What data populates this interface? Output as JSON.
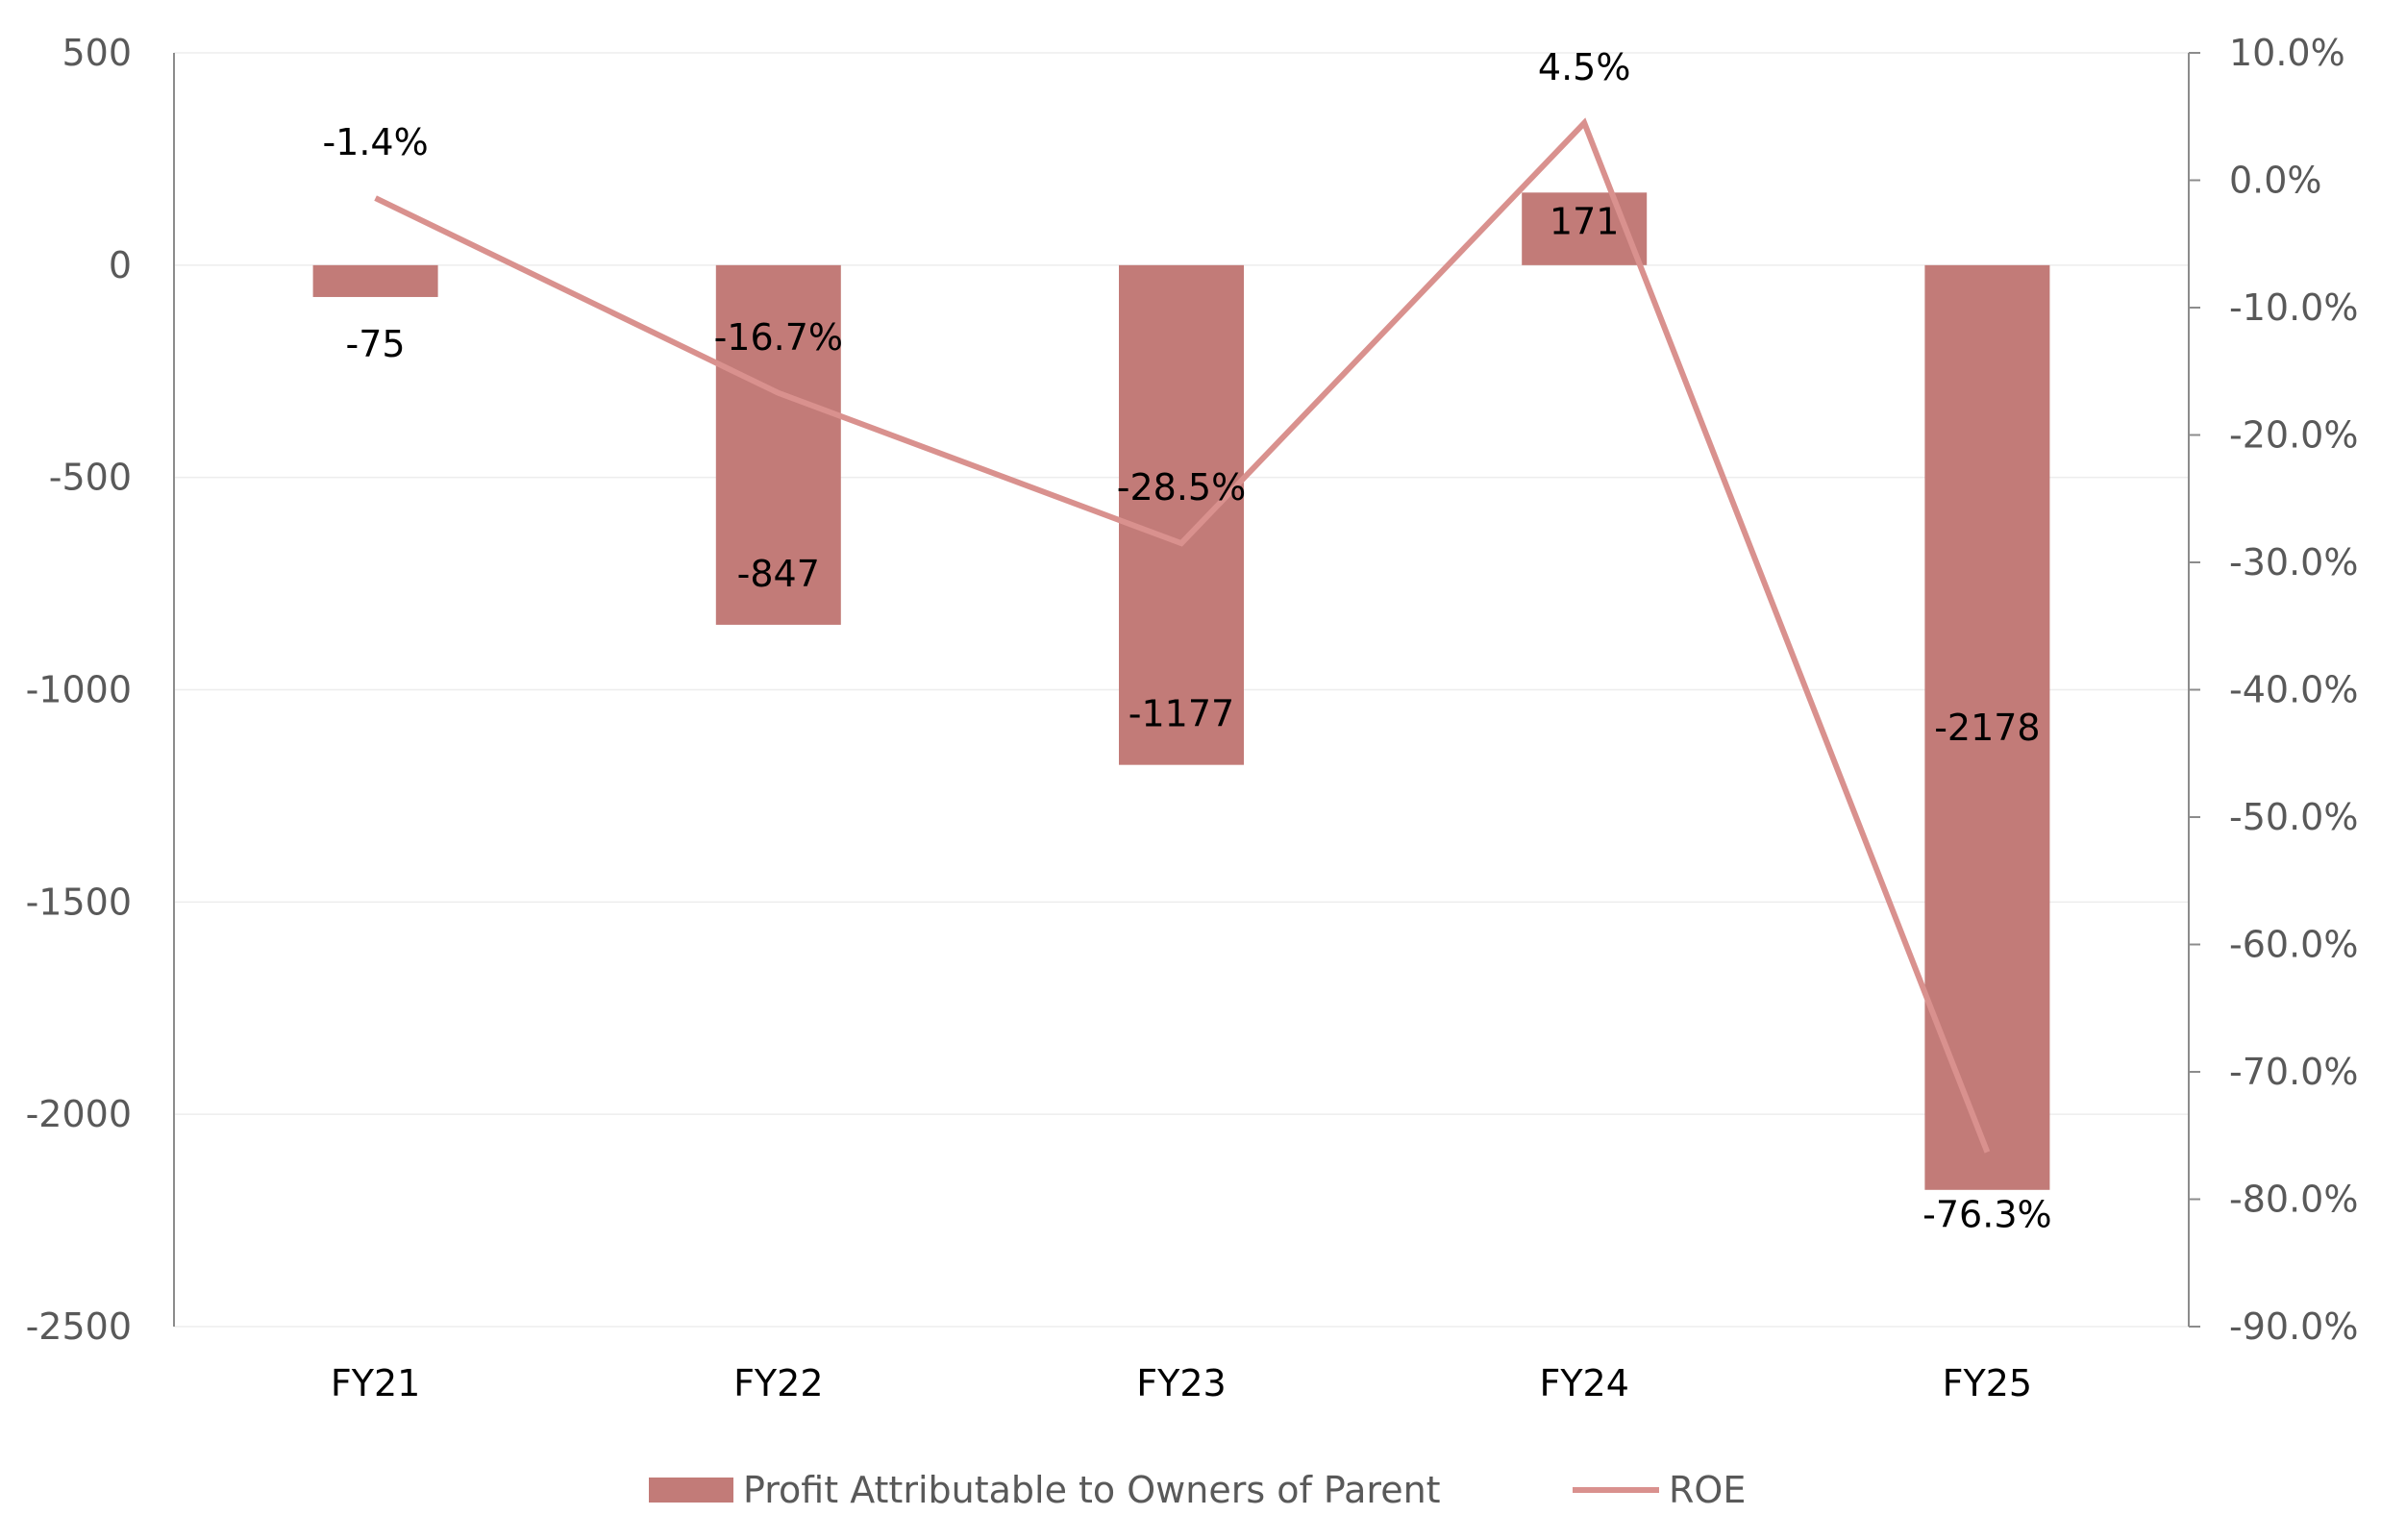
{
  "chart_data": {
    "type": "bar",
    "categories": [
      "FY21",
      "FY22",
      "FY23",
      "FY24",
      "FY25"
    ],
    "series": [
      {
        "name": "Profit Attributable to Owners of Parent",
        "type": "bar",
        "axis": "left",
        "values": [
          -75,
          -847,
          -1177,
          171,
          -2178
        ],
        "labels": [
          "-75",
          "-847",
          "-1177",
          "171",
          "-2178"
        ]
      },
      {
        "name": "ROE",
        "type": "line",
        "axis": "right",
        "values": [
          -1.4,
          -16.7,
          -28.5,
          4.5,
          -76.3
        ],
        "labels": [
          "-1.4%",
          "-16.7%",
          "-28.5%",
          "4.5%",
          "-76.3%"
        ]
      }
    ],
    "y_left": {
      "ylim": [
        -2500,
        500
      ],
      "ticks": [
        500,
        0,
        -500,
        -1000,
        -1500,
        -2000,
        -2500
      ],
      "tick_labels": [
        "500",
        "0",
        "-500",
        "-1000",
        "-1500",
        "-2000",
        "-2500"
      ]
    },
    "y_right": {
      "ylim": [
        -90,
        10
      ],
      "ticks": [
        10,
        0,
        -10,
        -20,
        -30,
        -40,
        -50,
        -60,
        -70,
        -80,
        -90
      ],
      "tick_labels": [
        "10.0%",
        "0.0%",
        "-10.0%",
        "-20.0%",
        "-30.0%",
        "-40.0%",
        "-50.0%",
        "-60.0%",
        "-70.0%",
        "-80.0%",
        "-90.0%"
      ]
    },
    "grid": true,
    "legend": "bottom",
    "colors": {
      "bar": "#C27B78",
      "line": "#D9918E",
      "grid": "#EDEDED",
      "axis": "#8C8C8C"
    }
  }
}
